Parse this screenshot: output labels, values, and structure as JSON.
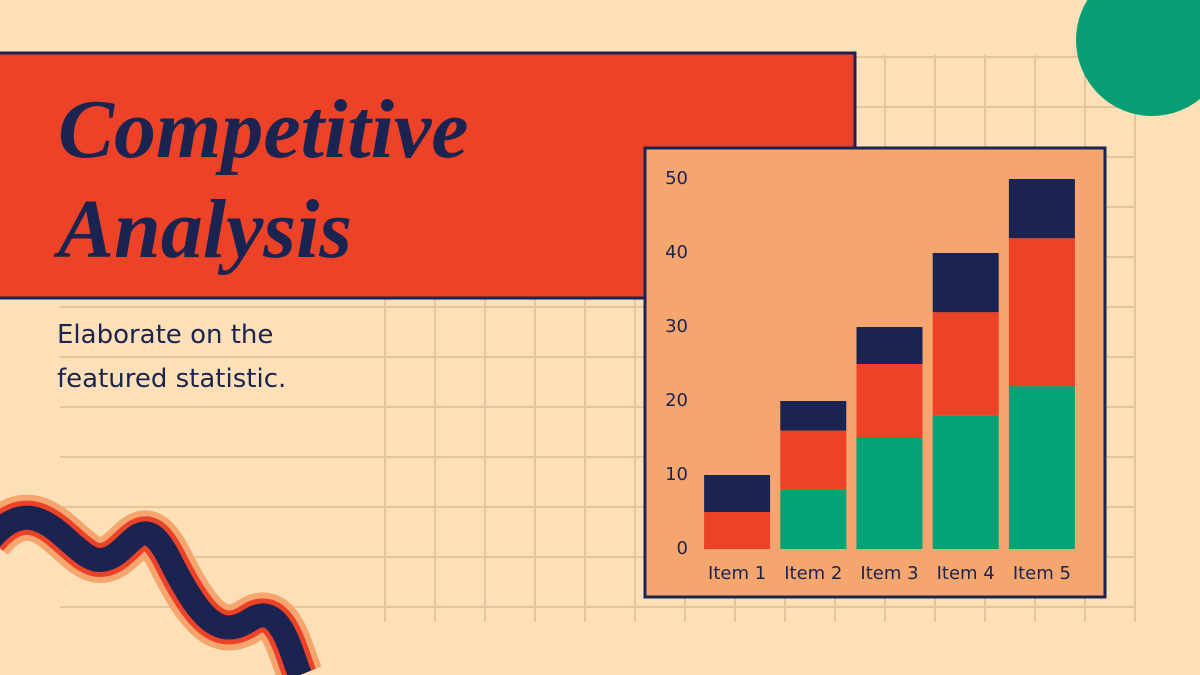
{
  "title": "Competitive Analysis",
  "subtitle": "Elaborate on the featured statistic.",
  "chart_data": {
    "type": "stacked_bar",
    "categories": [
      "Item 1",
      "Item 2",
      "Item 3",
      "Item 4",
      "Item 5"
    ],
    "series": [
      {
        "color": "#04a375",
        "values": [
          0,
          8,
          15,
          18,
          22
        ]
      },
      {
        "color": "#ec4228",
        "values": [
          5,
          8,
          10,
          14,
          20
        ]
      },
      {
        "color": "#1b2450",
        "values": [
          5,
          4,
          5,
          8,
          8
        ]
      }
    ],
    "ylim": [
      0,
      50
    ],
    "yticks": [
      0,
      10,
      20,
      30,
      40,
      50
    ],
    "grid": false
  }
}
